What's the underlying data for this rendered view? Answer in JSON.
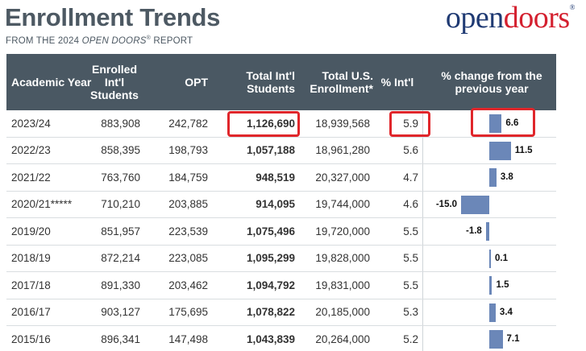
{
  "header": {
    "title": "Enrollment Trends",
    "subtitle_prefix": "FROM THE 2024 ",
    "subtitle_italic": "OPEN DOORS",
    "subtitle_mark": "®",
    "subtitle_suffix": " REPORT"
  },
  "logo": {
    "part1": "open",
    "part2": "doors",
    "mark": "®"
  },
  "columns": {
    "year": "Academic Year",
    "enrolled": "Enrolled Int'l Students",
    "opt": "OPT",
    "total": "Total Int'l Students",
    "us": "Total U.S. Enrollment*",
    "pct": "% Int'l",
    "change": "% change from the previous year"
  },
  "colors": {
    "header_bg": "#4a5863",
    "bar": "#6b87b8",
    "highlight": "#e0262b",
    "title": "#4d5963"
  },
  "chart_data": {
    "type": "table",
    "rows": [
      {
        "year": "2023/24",
        "enrolled": "883,908",
        "opt": "242,782",
        "total": "1,126,690",
        "us": "18,939,568",
        "pct": "5.9",
        "change": 6.6,
        "change_label": "6.6"
      },
      {
        "year": "2022/23",
        "enrolled": "858,395",
        "opt": "198,793",
        "total": "1,057,188",
        "us": "18,961,280",
        "pct": "5.6",
        "change": 11.5,
        "change_label": "11.5"
      },
      {
        "year": "2021/22",
        "enrolled": "763,760",
        "opt": "184,759",
        "total": "948,519",
        "us": "20,327,000",
        "pct": "4.7",
        "change": 3.8,
        "change_label": "3.8"
      },
      {
        "year": "2020/21*****",
        "enrolled": "710,210",
        "opt": "203,885",
        "total": "914,095",
        "us": "19,744,000",
        "pct": "4.6",
        "change": -15.0,
        "change_label": "-15.0"
      },
      {
        "year": "2019/20",
        "enrolled": "851,957",
        "opt": "223,539",
        "total": "1,075,496",
        "us": "19,720,000",
        "pct": "5.5",
        "change": -1.8,
        "change_label": "-1.8"
      },
      {
        "year": "2018/19",
        "enrolled": "872,214",
        "opt": "223,085",
        "total": "1,095,299",
        "us": "19,828,000",
        "pct": "5.5",
        "change": 0.1,
        "change_label": "0.1"
      },
      {
        "year": "2017/18",
        "enrolled": "891,330",
        "opt": "203,462",
        "total": "1,094,792",
        "us": "19,831,000",
        "pct": "5.5",
        "change": 1.5,
        "change_label": "1.5"
      },
      {
        "year": "2016/17",
        "enrolled": "903,127",
        "opt": "175,695",
        "total": "1,078,822",
        "us": "20,185,000",
        "pct": "5.3",
        "change": 3.4,
        "change_label": "3.4"
      },
      {
        "year": "2015/16",
        "enrolled": "896,341",
        "opt": "147,498",
        "total": "1,043,839",
        "us": "20,264,000",
        "pct": "5.2",
        "change": 7.1,
        "change_label": "7.1"
      }
    ]
  }
}
